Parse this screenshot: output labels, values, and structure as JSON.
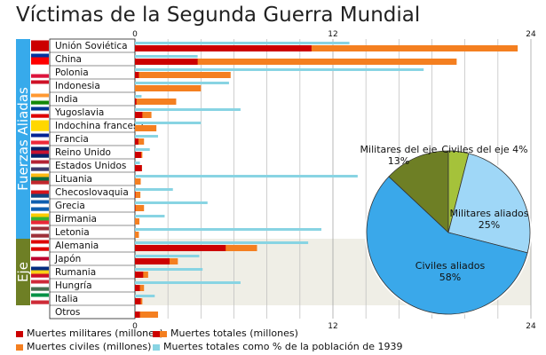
{
  "title": "Víctimas de la Segunda Guerra Mundial",
  "colors": {
    "military": "#cc0000",
    "total": "#f47f20",
    "civil": "#f47f20",
    "percent": "#88d4e3",
    "allies_band": "#37aaeb",
    "axis_band": "#6e7f25",
    "axis_bg": "#efeee6"
  },
  "chart_data": {
    "type": "bar",
    "orientation": "horizontal",
    "groups": [
      {
        "name": "Fuerzas Aliadas",
        "countries": [
          "Unión Soviética",
          "China",
          "Polonia",
          "Indonesia",
          "India",
          "Yugoslavia",
          "Indochina francesa",
          "Francia",
          "Reino Unido",
          "Estados Unidos",
          "Lituania",
          "Checoslovaquia",
          "Grecia",
          "Birmania",
          "Letonia"
        ]
      },
      {
        "name": "Eje",
        "countries": [
          "Alemania",
          "Japón",
          "Rumania",
          "Hungría",
          "Italia"
        ]
      }
    ],
    "categories": [
      "Unión Soviética",
      "China",
      "Polonia",
      "Indonesia",
      "India",
      "Yugoslavia",
      "Indochina francesa",
      "Francia",
      "Reino Unido",
      "Estados Unidos",
      "Lituania",
      "Checoslovaquia",
      "Grecia",
      "Birmania",
      "Letonia",
      "Alemania",
      "Japón",
      "Rumania",
      "Hungría",
      "Italia",
      "Otros"
    ],
    "series": [
      {
        "name": "Muertes militares (millones)",
        "values": [
          10.7,
          3.8,
          0.24,
          0.0,
          0.09,
          0.45,
          0.0,
          0.21,
          0.38,
          0.42,
          0.0,
          0.03,
          0.03,
          0.0,
          0.0,
          5.5,
          2.1,
          0.5,
          0.3,
          0.35,
          0.3
        ]
      },
      {
        "name": "Muertes totales (millones)",
        "values": [
          23.2,
          19.5,
          5.8,
          4.0,
          2.5,
          1.0,
          1.3,
          0.55,
          0.45,
          0.42,
          0.35,
          0.33,
          0.55,
          0.27,
          0.24,
          7.4,
          2.6,
          0.8,
          0.55,
          0.45,
          1.4
        ]
      },
      {
        "name": "Muertes totales como % de la población de 1939",
        "values": [
          13.0,
          3.8,
          17.5,
          5.7,
          0.4,
          6.4,
          4.0,
          1.4,
          0.9,
          0.3,
          13.5,
          2.3,
          4.4,
          1.8,
          11.3,
          10.5,
          3.9,
          4.1,
          6.4,
          1.2,
          0.0
        ]
      }
    ],
    "xaxis_top": {
      "ticks": [
        0,
        12,
        24
      ]
    },
    "xaxis_bottom": {
      "ticks": [
        0,
        12,
        24
      ]
    },
    "xlim": [
      0,
      24
    ],
    "pie": {
      "type": "pie",
      "slices": [
        {
          "label": "Militares del eje",
          "value": 13,
          "display": "13%",
          "color": "#6e7f25"
        },
        {
          "label": "Civiles del eje",
          "value": 4,
          "display": "4%",
          "color": "#a5c23a"
        },
        {
          "label": "Militares aliados",
          "value": 25,
          "display": "25%",
          "color": "#9fd7f7"
        },
        {
          "label": "Civiles aliados",
          "value": 58,
          "display": "58%",
          "color": "#3aa8ea"
        }
      ]
    }
  },
  "legend": {
    "military": "Muertes militares (millones)",
    "total": "Muertes totales (millones)",
    "civil": "Muertes civiles (millones)",
    "percent": "Muertes totales como % de la población de 1939"
  }
}
